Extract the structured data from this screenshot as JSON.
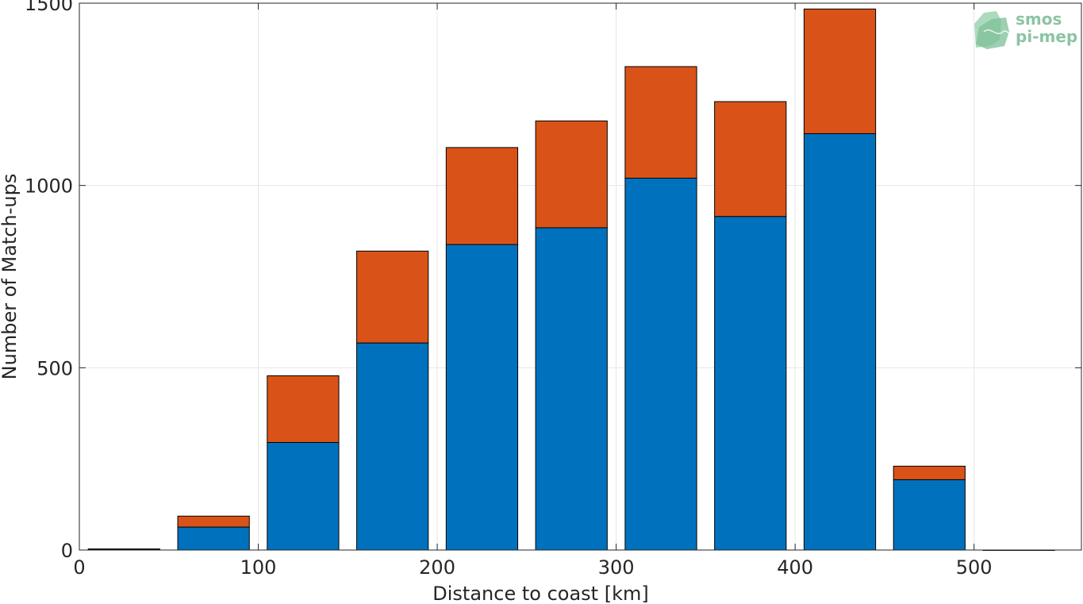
{
  "chart_data": {
    "type": "bar",
    "stacked": true,
    "title": "",
    "xlabel": "Distance to coast [km]",
    "ylabel": "Number of Match-ups",
    "x": [
      25,
      75,
      125,
      175,
      225,
      275,
      325,
      375,
      425,
      475,
      525
    ],
    "series": [
      {
        "color": "#0072bd",
        "values": [
          2,
          63,
          295,
          568,
          838,
          884,
          1020,
          915,
          1142,
          193,
          0
        ]
      },
      {
        "color": "#d95319",
        "values": [
          1,
          30,
          183,
          252,
          266,
          293,
          306,
          315,
          342,
          37,
          0
        ]
      }
    ],
    "xlim": [
      0,
      560
    ],
    "ylim": [
      0,
      1500
    ],
    "xticks": [
      0,
      100,
      200,
      300,
      400,
      500
    ],
    "yticks": [
      0,
      500,
      1000,
      1500
    ],
    "xticklabels": [
      "0",
      "100",
      "200",
      "300",
      "400",
      "500"
    ],
    "yticklabels": [
      "0",
      "500",
      "1000",
      "1500"
    ],
    "grid": true,
    "legend": "none"
  },
  "logo": {
    "line1": "smos",
    "line2": "pi-mep"
  }
}
